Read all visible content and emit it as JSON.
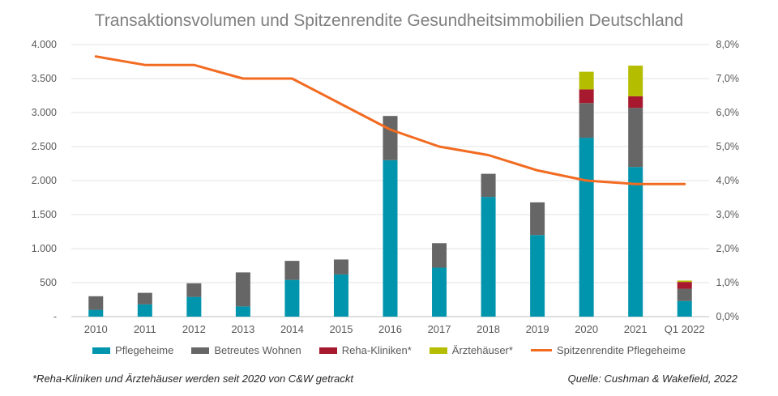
{
  "chart_data": {
    "type": "bar",
    "title": "Transaktionsvolumen und Spitzenrendite Gesundheitsimmobilien Deutschland",
    "categories": [
      "2010",
      "2011",
      "2012",
      "2013",
      "2014",
      "2015",
      "2016",
      "2017",
      "2018",
      "2019",
      "2020",
      "2021",
      "Q1 2022"
    ],
    "stacked": true,
    "ylim": [
      0,
      4000
    ],
    "y_ticks": [
      "-",
      "500",
      "1.000",
      "1.500",
      "2.000",
      "2.500",
      "3.000",
      "3.500",
      "4.000"
    ],
    "y2lim": [
      0,
      8
    ],
    "y2_ticks": [
      "0,0%",
      "1,0%",
      "2,0%",
      "3,0%",
      "4,0%",
      "5,0%",
      "6,0%",
      "7,0%",
      "8,0%"
    ],
    "series": [
      {
        "name": "Pflegeheime",
        "color": "#0095ad",
        "values": [
          100,
          180,
          290,
          150,
          540,
          620,
          2300,
          720,
          1760,
          1200,
          2630,
          2200,
          230
        ]
      },
      {
        "name": "Betreutes Wohnen",
        "color": "#666666",
        "values": [
          200,
          170,
          200,
          500,
          280,
          220,
          650,
          360,
          340,
          480,
          510,
          870,
          180
        ]
      },
      {
        "name": "Reha-Kliniken*",
        "color": "#a6192e",
        "values": [
          0,
          0,
          0,
          0,
          0,
          0,
          0,
          0,
          0,
          0,
          200,
          170,
          100
        ]
      },
      {
        "name": "Ärztehäuser*",
        "color": "#b5bd00",
        "values": [
          0,
          0,
          0,
          0,
          0,
          0,
          0,
          0,
          0,
          0,
          260,
          450,
          20
        ]
      }
    ],
    "line_series": {
      "name": "Spitzenrendite Pflegeheime",
      "color": "#f26b21",
      "axis": "right",
      "values": [
        7.65,
        7.4,
        7.4,
        7.0,
        7.0,
        6.25,
        5.5,
        5.0,
        4.75,
        4.3,
        4.0,
        3.9,
        3.9
      ]
    },
    "legend": "bottom",
    "grid": true
  },
  "footnote": "*Reha-Kliniken und Ärztehäuser werden seit 2020 von C&W getrackt",
  "source": "Quelle: Cushman & Wakefield, 2022"
}
